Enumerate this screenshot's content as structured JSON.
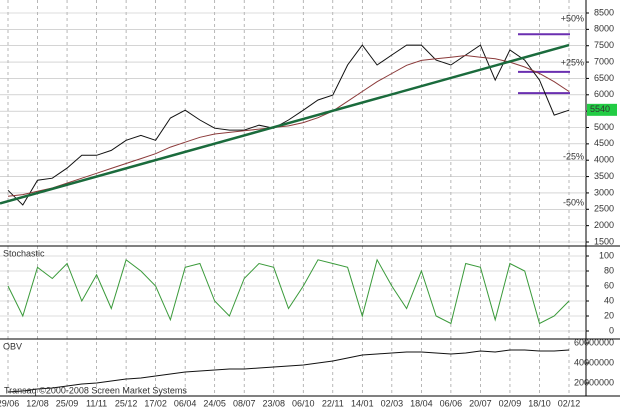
{
  "chart_data": [
    {
      "type": "line",
      "series": [
        {
          "color": "#111111",
          "values": [
            3080,
            2630,
            3390,
            3450,
            3760,
            4150,
            4150,
            4300,
            4610,
            4760,
            4610,
            5290,
            5530,
            5230,
            4980,
            4920,
            4920,
            5070,
            4980,
            5230,
            5530,
            5840,
            5990,
            6910,
            7520,
            6910,
            7215,
            7520,
            7520,
            7060,
            6910,
            7215,
            7520,
            6450,
            7370,
            7060,
            6450,
            5380,
            5530
          ]
        },
        {
          "color": "#8b3a3a",
          "values": [
            2900,
            2950,
            3050,
            3150,
            3300,
            3450,
            3600,
            3750,
            3900,
            4050,
            4200,
            4400,
            4550,
            4700,
            4800,
            4850,
            4900,
            4950,
            5000,
            5050,
            5150,
            5300,
            5500,
            5800,
            6100,
            6400,
            6650,
            6900,
            7050,
            7100,
            7150,
            7200,
            7150,
            7100,
            7000,
            6850,
            6650,
            6400,
            6100
          ]
        }
      ],
      "trendline": {
        "color": "#1a6b3c",
        "values": [
          2680,
          7520
        ]
      },
      "levels": [
        {
          "value": 7850,
          "color": "#6a2fb0"
        },
        {
          "value": 6700,
          "color": "#6a2fb0"
        },
        {
          "value": 6050,
          "color": "#6a2fb0"
        }
      ],
      "annotations": [
        {
          "label": "+50%",
          "value": 8310,
          "color": "#3a9a3a"
        },
        {
          "label": "+25%",
          "value": 6970,
          "color": "#3a9a3a"
        },
        {
          "label": "-25%",
          "value": 4090,
          "color": "#a0522d"
        },
        {
          "label": "-50%",
          "value": 2690,
          "color": "#a0522d"
        }
      ],
      "last_price": 5540,
      "ylim": [
        1300,
        8700
      ],
      "yticks": [
        1500,
        2000,
        2500,
        3000,
        3500,
        4000,
        4500,
        5000,
        5500,
        6000,
        6500,
        7000,
        7500,
        8000,
        8500
      ],
      "grid": true
    },
    {
      "type": "line",
      "title": "Stochastic",
      "series": [
        {
          "color": "#3a9a3a",
          "values": [
            60,
            20,
            85,
            70,
            90,
            40,
            75,
            30,
            95,
            80,
            60,
            15,
            85,
            90,
            40,
            20,
            70,
            90,
            85,
            30,
            60,
            95,
            90,
            85,
            20,
            95,
            60,
            30,
            80,
            20,
            10,
            90,
            85,
            15,
            90,
            80,
            10,
            20,
            40
          ]
        }
      ],
      "ylim": [
        -5,
        108
      ],
      "yticks": [
        0,
        20,
        40,
        60,
        80,
        100
      ],
      "grid": true
    },
    {
      "type": "line",
      "title": "OBV",
      "categories": [
        "29/06",
        null,
        "12/08",
        null,
        "25/09",
        null,
        "11/11",
        null,
        "25/12",
        null,
        "17/02",
        null,
        "06/04",
        null,
        "24/05",
        null,
        "08/07",
        null,
        "23/08",
        null,
        "06/10",
        null,
        "22/11",
        null,
        "14/01",
        null,
        "02/03",
        null,
        "18/04",
        null,
        "06/06",
        null,
        "20/07",
        null,
        "02/09",
        null,
        "18/10",
        null,
        "02/12"
      ],
      "series": [
        {
          "color": "#111111",
          "values": [
            11000000,
            12000000,
            14000000,
            15000000,
            17000000,
            19000000,
            20000000,
            22000000,
            24000000,
            25000000,
            27000000,
            29000000,
            31000000,
            32000000,
            33000000,
            34000000,
            34000000,
            35000000,
            36000000,
            37000000,
            38000000,
            40000000,
            42000000,
            45000000,
            48000000,
            49000000,
            50000000,
            51000000,
            51000000,
            50000000,
            49000000,
            50000000,
            52000000,
            51000000,
            53000000,
            53000000,
            52000000,
            52000000,
            53000000
          ]
        }
      ],
      "ylim": [
        4000000,
        66000000
      ],
      "yticks": [
        20000000,
        40000000,
        60000000
      ],
      "grid": false,
      "watermark": "Transaq ©2000-2008 Screen Market Systems"
    }
  ]
}
